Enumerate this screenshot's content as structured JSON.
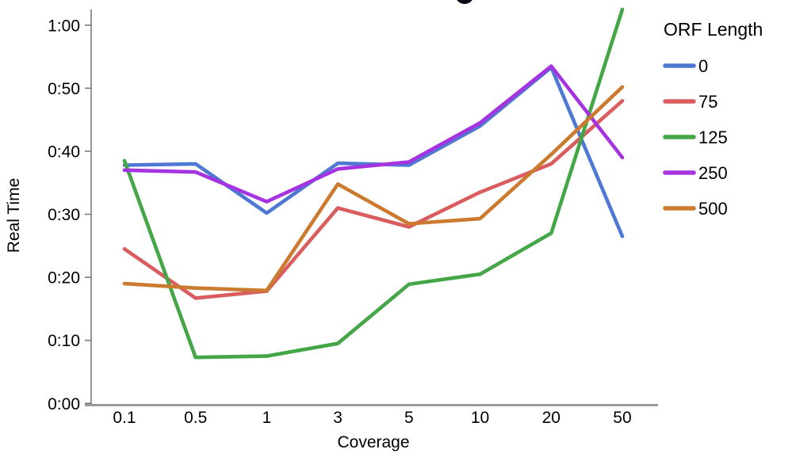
{
  "clipped_title": {
    "note": "chart title cropped out of view at top edge; only a letter descender fragment is visible"
  },
  "chart_data": {
    "type": "line",
    "x_categories": [
      "0.1",
      "0.5",
      "1",
      "3",
      "5",
      "10",
      "20",
      "50"
    ],
    "xlabel": "Coverage",
    "ylabel": "Real Time",
    "y_ticks": [
      "0:00",
      "0:10",
      "0:20",
      "0:30",
      "0:40",
      "0:50",
      "1:00"
    ],
    "y_unit": "minutes",
    "ylim_minutes": [
      0,
      60
    ],
    "grid": "off",
    "legend_position": "right",
    "legend_title": "ORF Length",
    "series": [
      {
        "name": "0",
        "color": "#4e78d1",
        "values_min": [
          37.8,
          38.0,
          30.2,
          38.1,
          37.8,
          44.0,
          53.3,
          26.5
        ]
      },
      {
        "name": "75",
        "color": "#d95d5f",
        "values_min": [
          24.5,
          16.7,
          17.8,
          31.0,
          28.0,
          33.5,
          38.0,
          48.0
        ]
      },
      {
        "name": "125",
        "color": "#44a647",
        "values_min": [
          38.5,
          7.3,
          7.5,
          9.5,
          18.9,
          20.5,
          27.0,
          62.5
        ]
      },
      {
        "name": "250",
        "color": "#a534e0",
        "values_min": [
          37.0,
          36.7,
          32.0,
          37.2,
          38.3,
          44.5,
          53.5,
          39.0
        ]
      },
      {
        "name": "500",
        "color": "#cb7b2f",
        "values_min": [
          19.0,
          18.3,
          17.9,
          34.8,
          28.5,
          29.3,
          39.5,
          50.2
        ]
      }
    ]
  }
}
